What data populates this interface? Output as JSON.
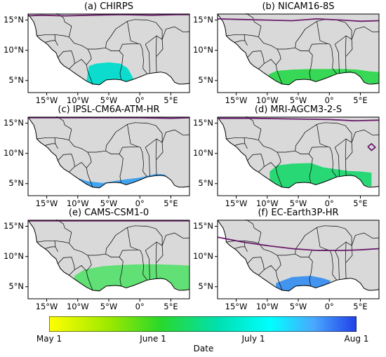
{
  "panels": [
    {
      "title": "(a) CHIRPS"
    },
    {
      "title": "(b) NICAM16-8S"
    },
    {
      "title": "(c) IPSL-CM6A-ATM-HR"
    },
    {
      "title": "(d) MRI-AGCM3-2-S"
    },
    {
      "title": "(e) CAMS-CSM1-0"
    },
    {
      "title": "(f) EC-Earth3P-HR"
    }
  ],
  "lat_ticks": [
    "15°N",
    "10°N",
    "5°N"
  ],
  "lon_ticks": [
    "15°W",
    "10°W",
    "5°W",
    "0°",
    "5°E"
  ],
  "colorbar": {
    "label": "Date",
    "ticks": [
      "May 1",
      "June 1",
      "July 1",
      "Aug 1"
    ],
    "colors": [
      "#ffff00",
      "#00e000",
      "#00ffff",
      "#3050ff"
    ]
  },
  "colors": {
    "land": "#d9d9d9",
    "ocean": "#ffffff",
    "boundary": "#000000",
    "contour": "#6a1b6a"
  }
}
